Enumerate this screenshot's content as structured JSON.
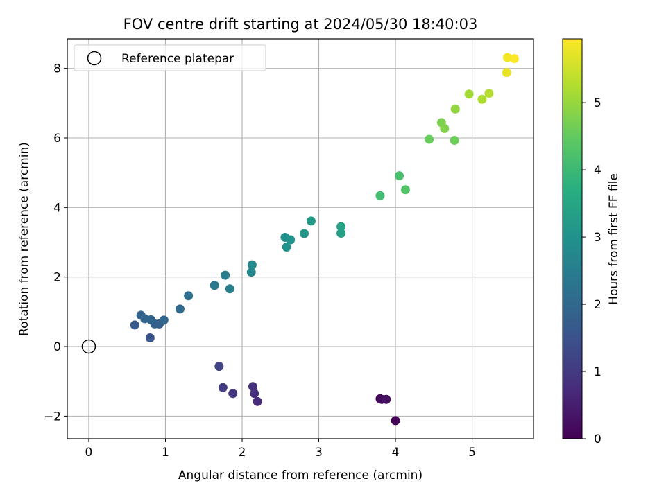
{
  "chart_data": {
    "type": "scatter",
    "title": "FOV centre drift starting at 2024/05/30 18:40:03",
    "xlabel": "Angular distance from reference (arcmin)",
    "ylabel": "Rotation from reference (arcmin)",
    "colorbar_label": "Hours from first FF file",
    "xlim": [
      -0.28,
      5.8
    ],
    "ylim": [
      -2.65,
      8.85
    ],
    "xticks": [
      0,
      1,
      2,
      3,
      4,
      5
    ],
    "xtick_labels": [
      "0",
      "1",
      "2",
      "3",
      "4",
      "5"
    ],
    "yticks": [
      -2,
      0,
      2,
      4,
      6,
      8
    ],
    "ytick_labels": [
      "−2",
      "0",
      "2",
      "4",
      "6",
      "8"
    ],
    "colorbar_range": [
      0,
      5.95
    ],
    "colorbar_ticks": [
      0,
      1,
      2,
      3,
      4,
      5
    ],
    "colorbar_tick_labels": [
      "0",
      "1",
      "2",
      "3",
      "4",
      "5"
    ],
    "colormap": "viridis",
    "grid": true,
    "legend": {
      "placement": "top-left",
      "entries": [
        "Reference platepar"
      ]
    },
    "reference_point": {
      "x": 0,
      "y": 0
    },
    "points": [
      {
        "x": 4.0,
        "y": -2.13,
        "hours": 0.05
      },
      {
        "x": 3.8,
        "y": -1.5,
        "hours": 0.12
      },
      {
        "x": 3.82,
        "y": -1.52,
        "hours": 0.18
      },
      {
        "x": 3.88,
        "y": -1.52,
        "hours": 0.25
      },
      {
        "x": 2.2,
        "y": -1.58,
        "hours": 0.7
      },
      {
        "x": 2.16,
        "y": -1.35,
        "hours": 0.78
      },
      {
        "x": 2.14,
        "y": -1.15,
        "hours": 0.85
      },
      {
        "x": 1.88,
        "y": -1.35,
        "hours": 0.92
      },
      {
        "x": 1.75,
        "y": -1.18,
        "hours": 1.05
      },
      {
        "x": 1.7,
        "y": -0.57,
        "hours": 1.2
      },
      {
        "x": 0.8,
        "y": 0.25,
        "hours": 1.55
      },
      {
        "x": 0.6,
        "y": 0.62,
        "hours": 1.7
      },
      {
        "x": 0.92,
        "y": 0.65,
        "hours": 1.75
      },
      {
        "x": 0.86,
        "y": 0.65,
        "hours": 1.8
      },
      {
        "x": 0.68,
        "y": 0.9,
        "hours": 1.85
      },
      {
        "x": 0.73,
        "y": 0.8,
        "hours": 1.9
      },
      {
        "x": 0.81,
        "y": 0.77,
        "hours": 1.93
      },
      {
        "x": 0.98,
        "y": 0.76,
        "hours": 1.97
      },
      {
        "x": 1.19,
        "y": 1.08,
        "hours": 2.05
      },
      {
        "x": 1.3,
        "y": 1.46,
        "hours": 2.15
      },
      {
        "x": 1.64,
        "y": 1.76,
        "hours": 2.4
      },
      {
        "x": 1.78,
        "y": 2.05,
        "hours": 2.48
      },
      {
        "x": 1.84,
        "y": 1.66,
        "hours": 2.55
      },
      {
        "x": 2.12,
        "y": 2.14,
        "hours": 2.7
      },
      {
        "x": 2.13,
        "y": 2.35,
        "hours": 2.75
      },
      {
        "x": 2.56,
        "y": 3.14,
        "hours": 2.95
      },
      {
        "x": 2.58,
        "y": 2.86,
        "hours": 3.0
      },
      {
        "x": 2.63,
        "y": 3.07,
        "hours": 3.05
      },
      {
        "x": 2.81,
        "y": 3.25,
        "hours": 3.15
      },
      {
        "x": 2.9,
        "y": 3.61,
        "hours": 3.2
      },
      {
        "x": 3.29,
        "y": 3.26,
        "hours": 3.35
      },
      {
        "x": 3.29,
        "y": 3.45,
        "hours": 3.4
      },
      {
        "x": 3.8,
        "y": 4.34,
        "hours": 4.1
      },
      {
        "x": 4.05,
        "y": 4.91,
        "hours": 4.2
      },
      {
        "x": 4.13,
        "y": 4.51,
        "hours": 4.3
      },
      {
        "x": 4.44,
        "y": 5.96,
        "hours": 4.55
      },
      {
        "x": 4.77,
        "y": 5.93,
        "hours": 4.6
      },
      {
        "x": 4.6,
        "y": 6.44,
        "hours": 4.75
      },
      {
        "x": 4.64,
        "y": 6.27,
        "hours": 4.8
      },
      {
        "x": 4.78,
        "y": 6.83,
        "hours": 4.95
      },
      {
        "x": 4.96,
        "y": 7.26,
        "hours": 5.1
      },
      {
        "x": 5.13,
        "y": 7.11,
        "hours": 5.2
      },
      {
        "x": 5.22,
        "y": 7.28,
        "hours": 5.3
      },
      {
        "x": 5.45,
        "y": 7.88,
        "hours": 5.75
      },
      {
        "x": 5.46,
        "y": 8.31,
        "hours": 5.85
      },
      {
        "x": 5.55,
        "y": 8.28,
        "hours": 5.92
      }
    ]
  }
}
